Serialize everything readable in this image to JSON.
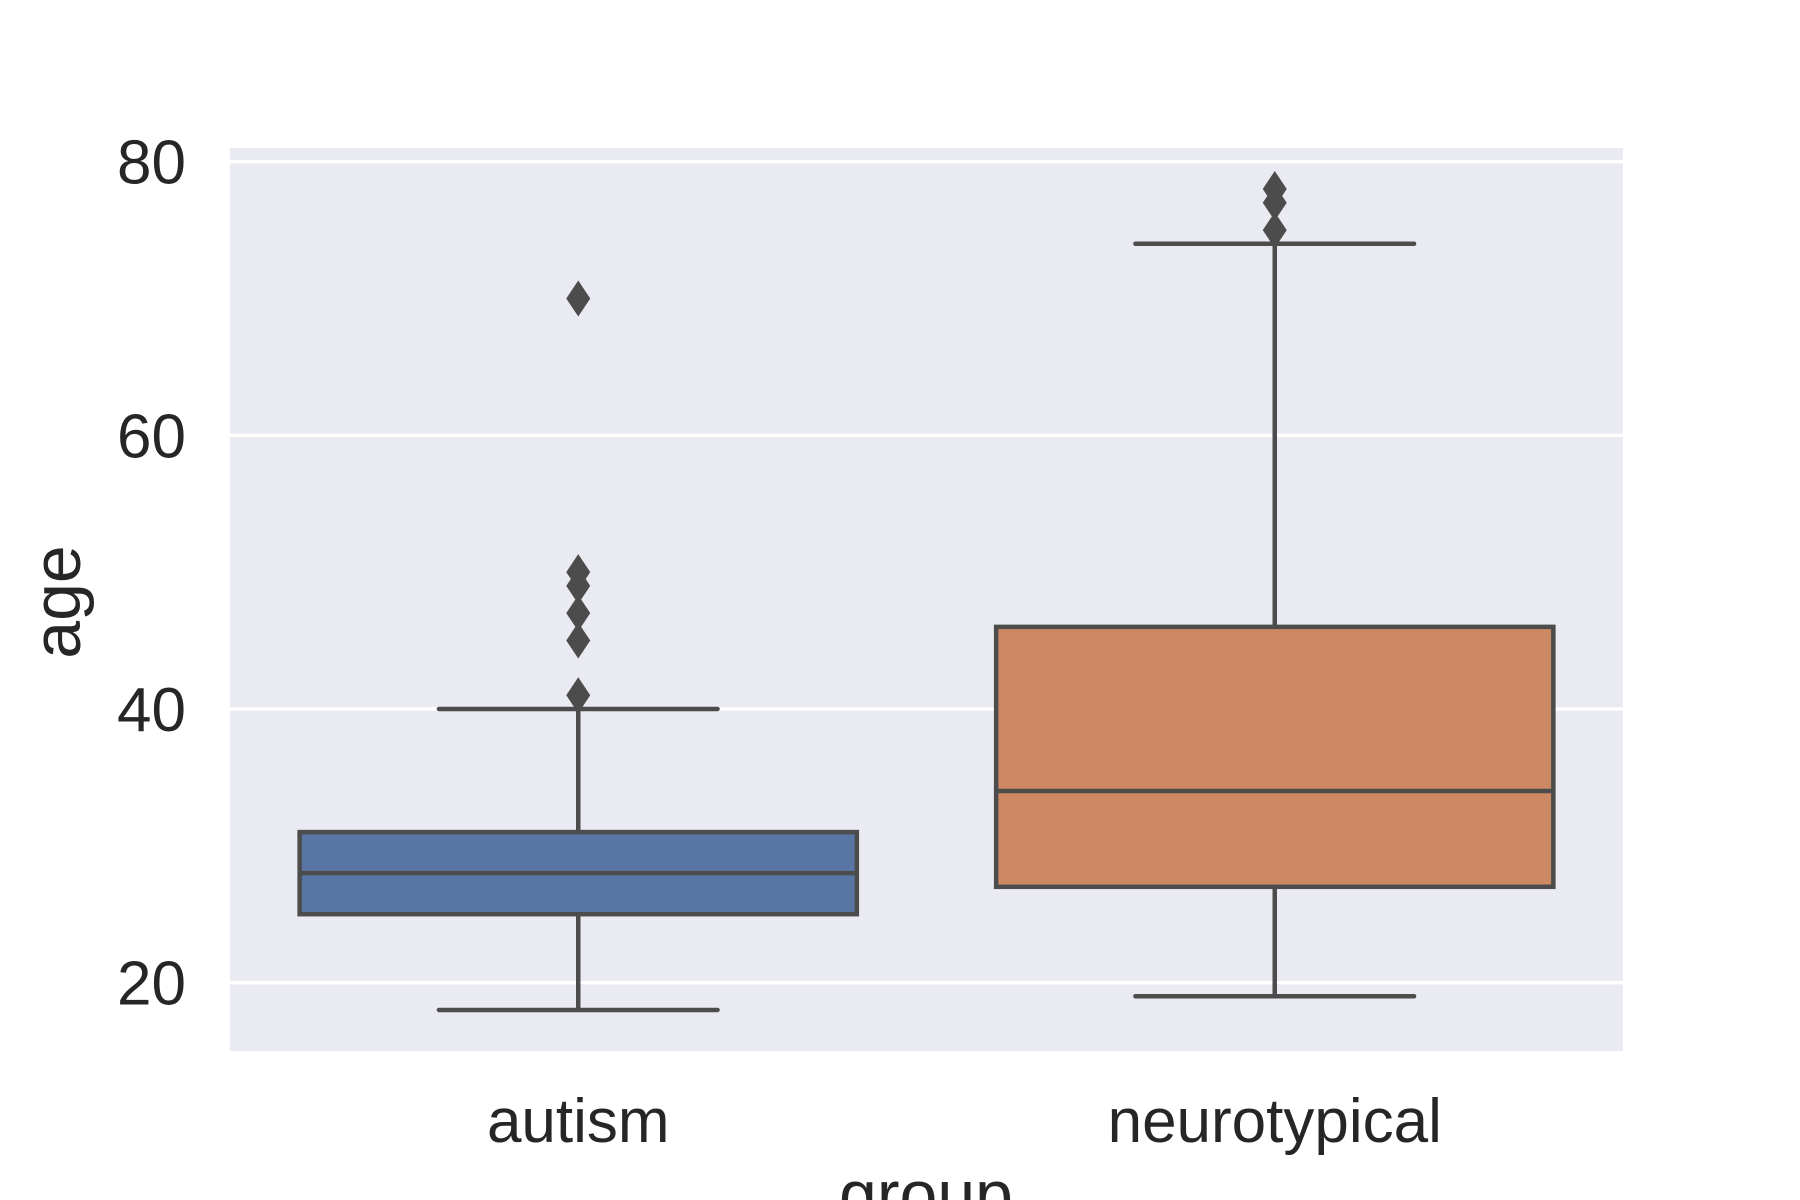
{
  "chart_data": {
    "type": "box",
    "xlabel": "group",
    "ylabel": "age",
    "ylim": [
      15,
      81
    ],
    "yticks": [
      20,
      40,
      60,
      80
    ],
    "grid": true,
    "background": "#eaeaf2",
    "categories": [
      "autism",
      "neurotypical"
    ],
    "boxes": [
      {
        "category": "autism",
        "color": "#5875a4",
        "whisker_low": 18,
        "q1": 25,
        "median": 28,
        "q3": 31,
        "whisker_high": 40,
        "outliers": [
          41,
          45,
          47,
          49,
          50,
          70
        ]
      },
      {
        "category": "neurotypical",
        "color": "#cc8963",
        "whisker_low": 19,
        "q1": 27,
        "median": 34,
        "q3": 46,
        "whisker_high": 74,
        "outliers": [
          75,
          77,
          78
        ]
      }
    ]
  }
}
